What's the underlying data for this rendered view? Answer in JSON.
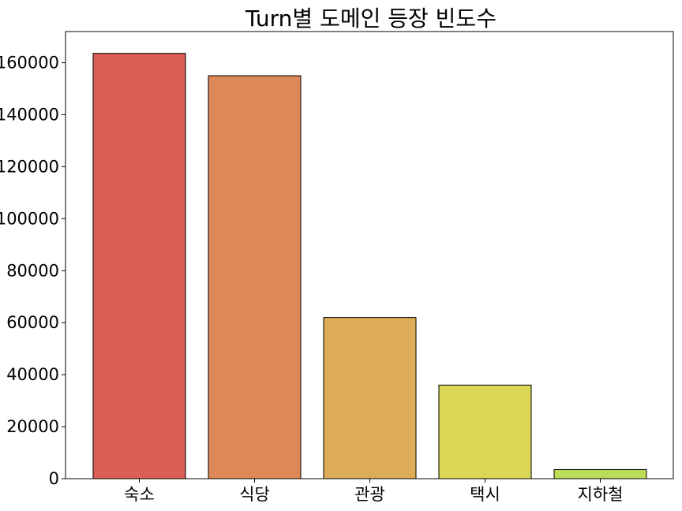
{
  "chart_data": {
    "type": "bar",
    "title": "Turn별 도메인 등장 빈도수",
    "xlabel": "",
    "ylabel": "",
    "categories": [
      "숙소",
      "식당",
      "관광",
      "택시",
      "지하철"
    ],
    "values": [
      163600,
      155000,
      62000,
      36000,
      3500
    ],
    "colors": [
      "#dc5f57",
      "#dc8857",
      "#dcac57",
      "#dcd657",
      "#bbdc57"
    ],
    "ylim": [
      0,
      172000
    ],
    "yticks": [
      0,
      20000,
      40000,
      60000,
      80000,
      100000,
      120000,
      140000,
      160000
    ],
    "grid": false,
    "legend": "none"
  }
}
